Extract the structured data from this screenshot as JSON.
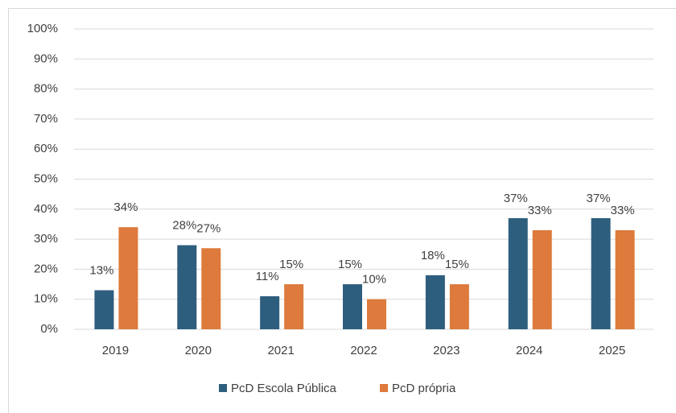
{
  "chart_data": {
    "type": "bar",
    "categories": [
      "2019",
      "2020",
      "2021",
      "2022",
      "2023",
      "2024",
      "2025"
    ],
    "series": [
      {
        "name": "PcD Escola Pública",
        "color": "#2e5e7e",
        "values": [
          13,
          28,
          11,
          15,
          18,
          37,
          37
        ],
        "value_labels": [
          "13%",
          "28%",
          "11%",
          "15%",
          "18%",
          "37%",
          "37%"
        ]
      },
      {
        "name": "PcD própria",
        "color": "#dd7a3c",
        "values": [
          34,
          27,
          15,
          10,
          15,
          33,
          33
        ],
        "value_labels": [
          "34%",
          "27%",
          "15%",
          "10%",
          "15%",
          "33%",
          "33%"
        ]
      }
    ],
    "ylim": [
      0,
      100
    ],
    "yticks": [
      {
        "value": 0,
        "label": "0%"
      },
      {
        "value": 10,
        "label": "10%"
      },
      {
        "value": 20,
        "label": "20%"
      },
      {
        "value": 30,
        "label": "30%"
      },
      {
        "value": 40,
        "label": "40%"
      },
      {
        "value": 50,
        "label": "50%"
      },
      {
        "value": 60,
        "label": "60%"
      },
      {
        "value": 70,
        "label": "70%"
      },
      {
        "value": 80,
        "label": "80%"
      },
      {
        "value": 90,
        "label": "90%"
      },
      {
        "value": 100,
        "label": "100%"
      }
    ],
    "grid": true,
    "legend": "bottom"
  }
}
